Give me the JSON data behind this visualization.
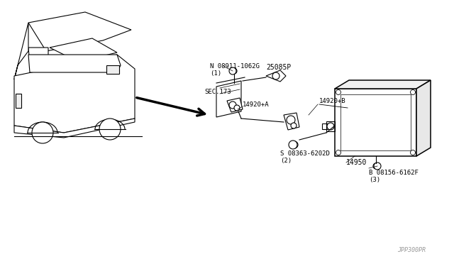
{
  "bg_color": "#ffffff",
  "line_color": "#000000",
  "gray_color": "#888888",
  "light_gray": "#cccccc",
  "fig_width": 6.4,
  "fig_height": 3.72,
  "watermark": "JPP300PR",
  "labels": {
    "n_bolt": "N 08911-1062G\n(1)",
    "sensor": "25085P",
    "sec173": "SEC.173",
    "part_a": "14920+A",
    "part_b": "14920+B",
    "s_bolt": "S 08363-6202D\n(2)",
    "main": "14950",
    "b_bolt": "B 08156-6162F\n(3)"
  }
}
